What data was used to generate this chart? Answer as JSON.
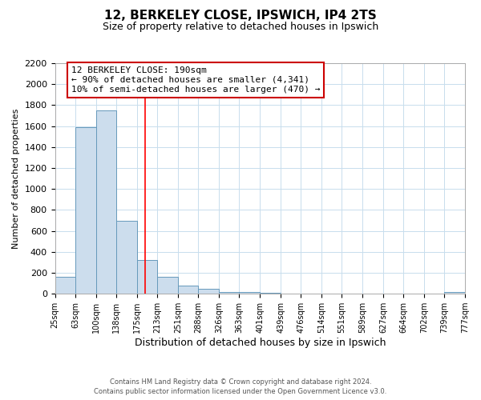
{
  "title": "12, BERKELEY CLOSE, IPSWICH, IP4 2TS",
  "subtitle": "Size of property relative to detached houses in Ipswich",
  "xlabel": "Distribution of detached houses by size in Ipswich",
  "ylabel": "Number of detached properties",
  "bar_edges": [
    25,
    63,
    100,
    138,
    175,
    213,
    251,
    288,
    326,
    363,
    401,
    439,
    476,
    514,
    551,
    589,
    627,
    664,
    702,
    739,
    777
  ],
  "bar_heights": [
    160,
    1590,
    1750,
    700,
    320,
    160,
    80,
    50,
    20,
    15,
    10,
    5,
    0,
    0,
    0,
    0,
    0,
    0,
    0,
    20
  ],
  "bar_color": "#ccdded",
  "bar_edge_color": "#6699bb",
  "bar_linewidth": 0.7,
  "red_line_x": 190,
  "ylim": [
    0,
    2200
  ],
  "yticks": [
    0,
    200,
    400,
    600,
    800,
    1000,
    1200,
    1400,
    1600,
    1800,
    2000,
    2200
  ],
  "annotation_title": "12 BERKELEY CLOSE: 190sqm",
  "annotation_line1": "← 90% of detached houses are smaller (4,341)",
  "annotation_line2": "10% of semi-detached houses are larger (470) →",
  "annotation_box_color": "#ffffff",
  "annotation_box_edge": "#cc0000",
  "footer_line1": "Contains HM Land Registry data © Crown copyright and database right 2024.",
  "footer_line2": "Contains public sector information licensed under the Open Government Licence v3.0.",
  "background_color": "#ffffff",
  "grid_color": "#c8dded",
  "x_tick_labels": [
    "25sqm",
    "63sqm",
    "100sqm",
    "138sqm",
    "175sqm",
    "213sqm",
    "251sqm",
    "288sqm",
    "326sqm",
    "363sqm",
    "401sqm",
    "439sqm",
    "476sqm",
    "514sqm",
    "551sqm",
    "589sqm",
    "627sqm",
    "664sqm",
    "702sqm",
    "739sqm",
    "777sqm"
  ],
  "title_fontsize": 11,
  "subtitle_fontsize": 9,
  "ylabel_fontsize": 8,
  "xlabel_fontsize": 9,
  "ytick_fontsize": 8,
  "xtick_fontsize": 7,
  "ann_fontsize": 8,
  "footer_fontsize": 6
}
